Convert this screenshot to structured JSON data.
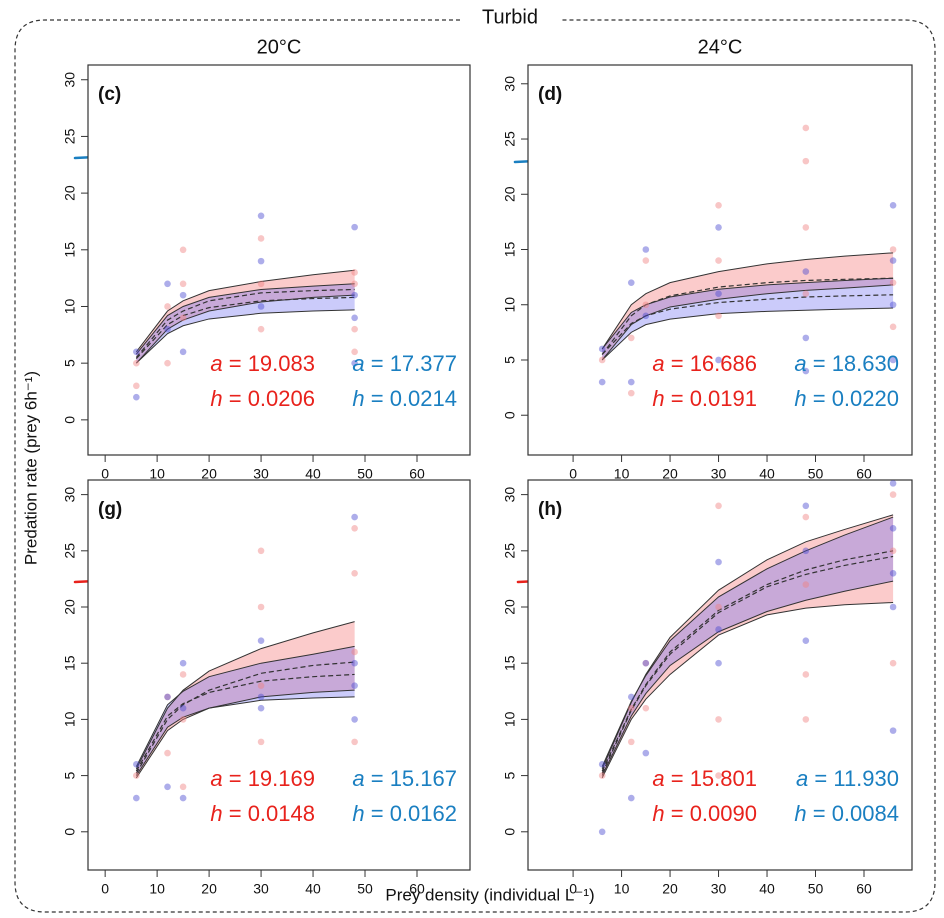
{
  "figure": {
    "title": "Turbid",
    "columns": [
      "20°C",
      "24°C"
    ],
    "ylabel": "Predation rate (prey 6h⁻¹)",
    "xlabel": "Prey density (individual L⁻¹)"
  },
  "chart_data": [
    {
      "type": "line",
      "title": "(c)",
      "x": [
        6,
        12,
        15,
        20,
        30,
        40,
        48
      ],
      "xlim": [
        -3.3,
        70.2
      ],
      "ylim": [
        -3.1,
        31.3
      ],
      "xticks": [
        0,
        10,
        20,
        30,
        40,
        50,
        60
      ],
      "yticks": [
        0,
        5,
        10,
        15,
        20,
        25,
        30
      ],
      "series": [
        {
          "color": "#e8221c",
          "lower": [
            5.0,
            8.0,
            8.8,
            9.6,
            10.4,
            10.8,
            11.0
          ],
          "values": [
            5.5,
            8.8,
            9.6,
            10.5,
            11.2,
            11.4,
            11.5
          ],
          "upper": [
            6.0,
            9.6,
            10.5,
            11.4,
            12.2,
            12.8,
            13.2
          ],
          "labels": [
            "a = 19.083",
            "h = 0.0206"
          ]
        },
        {
          "color": "#1a7fc1",
          "lower": [
            5.0,
            7.6,
            8.3,
            8.9,
            9.4,
            9.6,
            9.7
          ],
          "values": [
            5.4,
            8.4,
            9.2,
            9.9,
            10.5,
            10.7,
            10.8
          ],
          "upper": [
            5.8,
            9.2,
            10.0,
            10.8,
            11.5,
            11.8,
            12.0
          ],
          "labels": [
            "a = 17.377",
            "h = 0.0214"
          ]
        }
      ],
      "points": [
        {
          "color": "#f08080",
          "x": [
            6,
            6,
            12,
            12,
            15,
            15,
            15,
            30,
            30,
            30,
            48,
            48,
            48,
            48
          ],
          "y": [
            5,
            3,
            10,
            5,
            15,
            12,
            9,
            16,
            12,
            8,
            12,
            8,
            6,
            13
          ]
        },
        {
          "color": "#4a4ad0",
          "x": [
            6,
            6,
            12,
            12,
            15,
            15,
            30,
            30,
            30,
            48,
            48,
            48,
            48
          ],
          "y": [
            6,
            2,
            12,
            8,
            11,
            6,
            18,
            14,
            10,
            17,
            11,
            9,
            5
          ]
        }
      ]
    },
    {
      "type": "line",
      "title": "(d)",
      "x": [
        6,
        12,
        15,
        20,
        30,
        40,
        48,
        56,
        66
      ],
      "xlim": [
        -9.3,
        69.9
      ],
      "ylim": [
        -3.6,
        31.7
      ],
      "xticks": [
        0,
        10,
        20,
        30,
        40,
        50,
        60
      ],
      "yticks": [
        0,
        5,
        10,
        15,
        20,
        25,
        30
      ],
      "series": [
        {
          "color": "#e8221c",
          "lower": [
            5,
            8.2,
            9.0,
            9.8,
            10.5,
            11.0,
            11.3,
            11.5,
            11.8
          ],
          "values": [
            5.5,
            9.0,
            10.0,
            10.8,
            11.6,
            12.0,
            12.2,
            12.3,
            12.4
          ],
          "upper": [
            6,
            10.0,
            11.0,
            12.0,
            13.0,
            13.7,
            14.1,
            14.4,
            14.7
          ],
          "labels": [
            "a = 16.686",
            "h = 0.0191"
          ]
        },
        {
          "color": "#1a7fc1",
          "lower": [
            5,
            7.5,
            8.2,
            8.7,
            9.2,
            9.4,
            9.5,
            9.6,
            9.7
          ],
          "values": [
            5.5,
            8.3,
            9.0,
            9.6,
            10.2,
            10.5,
            10.7,
            10.8,
            10.9
          ],
          "upper": [
            6,
            9.3,
            10.0,
            10.7,
            11.4,
            11.8,
            12.0,
            12.2,
            12.4
          ],
          "labels": [
            "a = 18.630",
            "h = 0.0220"
          ]
        }
      ],
      "points": [
        {
          "color": "#f08080",
          "x": [
            6,
            12,
            12,
            15,
            15,
            30,
            30,
            30,
            48,
            48,
            48,
            48,
            66,
            66,
            66
          ],
          "y": [
            5,
            7,
            2,
            14,
            10,
            19,
            14,
            9,
            26,
            23,
            17,
            11,
            15,
            12,
            8
          ]
        },
        {
          "color": "#4a4ad0",
          "x": [
            6,
            6,
            12,
            12,
            15,
            15,
            30,
            30,
            30,
            48,
            48,
            48,
            66,
            66,
            66,
            66
          ],
          "y": [
            6,
            3,
            12,
            3,
            15,
            9,
            17,
            11,
            5,
            13,
            7,
            4,
            19,
            14,
            10,
            5
          ]
        }
      ]
    },
    {
      "type": "line",
      "title": "(g)",
      "x": [
        6,
        12,
        15,
        20,
        30,
        40,
        48
      ],
      "xlim": [
        -3.3,
        70.2
      ],
      "ylim": [
        -3.4,
        31.3
      ],
      "xticks": [
        0,
        10,
        20,
        30,
        40,
        50,
        60
      ],
      "yticks": [
        0,
        5,
        10,
        15,
        20,
        25,
        30
      ],
      "series": [
        {
          "color": "#e8221c",
          "lower": [
            4.8,
            9.0,
            10.0,
            11.0,
            12.0,
            12.4,
            12.6
          ],
          "values": [
            5.2,
            10.0,
            11.3,
            12.6,
            14.1,
            14.8,
            15.1
          ],
          "upper": [
            5.6,
            11.0,
            12.6,
            14.3,
            16.3,
            17.7,
            18.7
          ],
          "labels": [
            "a = 19.169",
            "h = 0.0148"
          ]
        },
        {
          "color": "#1a7fc1",
          "lower": [
            5.0,
            9.3,
            10.2,
            11.0,
            11.7,
            11.9,
            12.0
          ],
          "values": [
            5.4,
            10.3,
            11.4,
            12.4,
            13.4,
            13.8,
            14.0
          ],
          "upper": [
            5.8,
            11.3,
            12.5,
            13.8,
            15.0,
            15.8,
            16.5
          ],
          "labels": [
            "a = 15.167",
            "h = 0.0162"
          ]
        }
      ],
      "points": [
        {
          "color": "#f08080",
          "x": [
            6,
            12,
            12,
            15,
            15,
            15,
            30,
            30,
            30,
            30,
            48,
            48,
            48,
            48
          ],
          "y": [
            5,
            7,
            12,
            14,
            10,
            4,
            25,
            20,
            13,
            8,
            27,
            23,
            16,
            8
          ]
        },
        {
          "color": "#4a4ad0",
          "x": [
            6,
            6,
            12,
            12,
            15,
            15,
            15,
            30,
            30,
            30,
            48,
            48,
            48,
            48
          ],
          "y": [
            6,
            3,
            12,
            4,
            15,
            11,
            3,
            17,
            12,
            11,
            28,
            15,
            13,
            10
          ]
        }
      ]
    },
    {
      "type": "line",
      "title": "(h)",
      "x": [
        6,
        12,
        15,
        20,
        30,
        40,
        48,
        56,
        66
      ],
      "xlim": [
        -9.3,
        69.9
      ],
      "ylim": [
        -3.4,
        31.3
      ],
      "xticks": [
        0,
        10,
        20,
        30,
        40,
        50,
        60
      ],
      "yticks": [
        0,
        5,
        10,
        15,
        20,
        25,
        30
      ],
      "series": [
        {
          "color": "#e8221c",
          "lower": [
            4.8,
            10.0,
            11.8,
            14.0,
            17.5,
            19.3,
            19.9,
            20.2,
            20.4
          ],
          "values": [
            5.2,
            10.8,
            13.0,
            15.8,
            19.5,
            21.8,
            22.9,
            23.7,
            24.5
          ],
          "upper": [
            5.6,
            11.5,
            14.0,
            17.3,
            21.5,
            24.2,
            25.8,
            26.9,
            28.2
          ],
          "labels": [
            "a = 15.801",
            "h = 0.0090"
          ]
        },
        {
          "color": "#1a7fc1",
          "lower": [
            5.0,
            10.3,
            12.3,
            14.8,
            17.8,
            19.6,
            20.6,
            21.4,
            22.3
          ],
          "values": [
            5.4,
            10.9,
            13.1,
            16.0,
            19.7,
            22.0,
            23.3,
            24.2,
            25.0
          ],
          "upper": [
            5.8,
            11.6,
            13.9,
            17.0,
            20.9,
            23.4,
            25.0,
            26.4,
            28.0
          ],
          "labels": [
            "a = 11.930",
            "h = 0.0084"
          ]
        }
      ],
      "points": [
        {
          "color": "#f08080",
          "x": [
            6,
            12,
            12,
            15,
            15,
            30,
            30,
            30,
            30,
            48,
            48,
            48,
            48,
            66,
            66,
            66
          ],
          "y": [
            5,
            11,
            8,
            15,
            11,
            29,
            20,
            10,
            5,
            28,
            22,
            14,
            10,
            30,
            25,
            15
          ]
        },
        {
          "color": "#4a4ad0",
          "x": [
            6,
            6,
            12,
            12,
            15,
            15,
            30,
            30,
            30,
            48,
            48,
            48,
            66,
            66,
            66,
            66,
            66
          ],
          "y": [
            6,
            0,
            12,
            3,
            15,
            7,
            24,
            18,
            15,
            29,
            25,
            17,
            31,
            27,
            23,
            20,
            9
          ]
        }
      ]
    }
  ]
}
